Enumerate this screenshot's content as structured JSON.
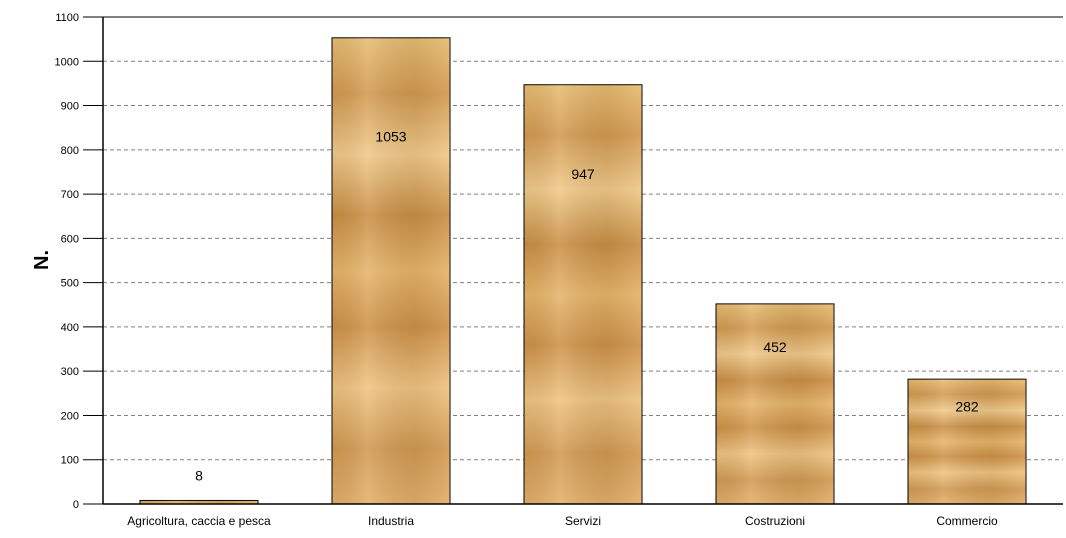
{
  "chart_data": {
    "type": "bar",
    "ylabel": "N.",
    "ylim": [
      0,
      1100
    ],
    "ytick_step": 100,
    "grid": true,
    "bar_color": "#d9a457",
    "categories": [
      "Agricoltura, caccia e pesca",
      "Industria",
      "Servizi",
      "Costruzioni",
      "Commercio"
    ],
    "values": [
      8,
      1053,
      947,
      452,
      282
    ],
    "data_labels": [
      "8",
      "1053",
      "947",
      "452",
      "282"
    ]
  }
}
